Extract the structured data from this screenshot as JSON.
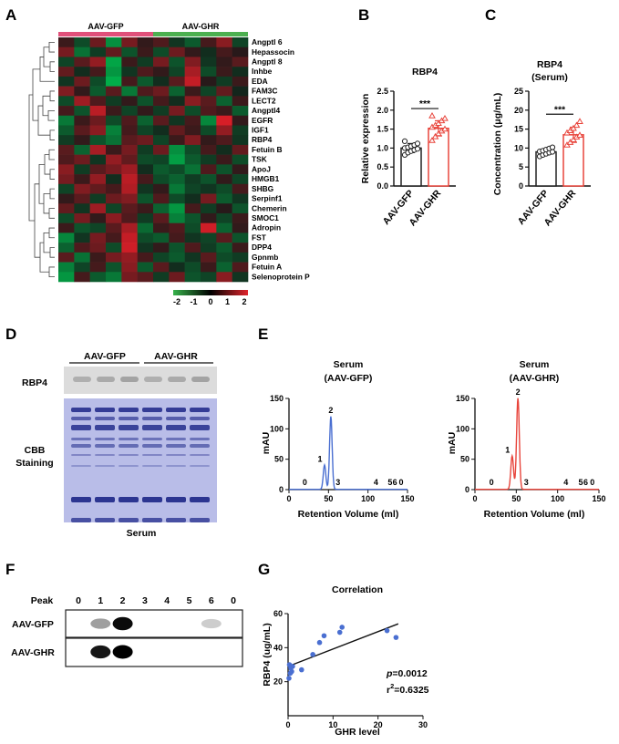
{
  "panels": {
    "A": "A",
    "B": "B",
    "C": "C",
    "D": "D",
    "E": "E",
    "F": "F",
    "G": "G"
  },
  "heatmap": {
    "groups": [
      "AAV-GFP",
      "AAV-GHR"
    ],
    "group_colors": [
      "#e0507a",
      "#4cb050"
    ],
    "genes": [
      "Angptl 6",
      "Hepassocin",
      "Angptl 8",
      "Inhbe",
      "EDA",
      "FAM3C",
      "LECT2",
      "Angptl4",
      "EGFR",
      "IGF1",
      "RBP4",
      "Fetuin B",
      "TSK",
      "ApoJ",
      "HMGB1",
      "SHBG",
      "Serpinf1",
      "Chemerin",
      "SMOC1",
      "Adropin",
      "FST",
      "DPP4",
      "Gpnmb",
      "Fetuin A",
      "Selenoprotein P"
    ],
    "scale_ticks": [
      "-2",
      "-1",
      "0",
      "1",
      "2"
    ],
    "values": [
      [
        0.3,
        -0.6,
        0.8,
        -1.5,
        0.9,
        0.2,
        0.5,
        -0.3,
        -0.8,
        0.4,
        1.1,
        -0.5
      ],
      [
        0.9,
        -1.1,
        -0.4,
        0.7,
        -0.7,
        0.3,
        -0.6,
        0.8,
        0.2,
        -0.2,
        0.4,
        0.1
      ],
      [
        -0.5,
        0.6,
        1.2,
        -1.8,
        0.3,
        -0.4,
        0.9,
        -0.7,
        1.0,
        -0.3,
        0.2,
        0.6
      ],
      [
        0.7,
        -0.2,
        0.4,
        -1.6,
        -0.3,
        0.5,
        0.2,
        -0.5,
        1.4,
        -0.6,
        0.3,
        -0.2
      ],
      [
        -0.3,
        0.8,
        -0.6,
        -1.9,
        0.4,
        -0.8,
        -0.2,
        0.6,
        1.7,
        0.1,
        -0.4,
        0.3
      ],
      [
        1.0,
        0.2,
        -0.8,
        0.6,
        -1.2,
        0.5,
        0.8,
        -0.9,
        0.3,
        -0.5,
        0.7,
        -0.1
      ],
      [
        -0.6,
        1.3,
        0.5,
        -0.4,
        0.2,
        -0.7,
        0.4,
        -0.2,
        1.1,
        0.6,
        -0.9,
        0.3
      ],
      [
        0.4,
        -0.7,
        1.6,
        0.3,
        -0.5,
        0.2,
        -0.4,
        0.9,
        -0.6,
        0.5,
        0.3,
        -0.8
      ],
      [
        -1.2,
        0.3,
        0.8,
        -0.6,
        0.5,
        -0.9,
        0.6,
        -0.3,
        0.4,
        -1.4,
        1.9,
        0.2
      ],
      [
        -0.8,
        0.6,
        1.1,
        -1.3,
        0.4,
        -0.5,
        -0.2,
        0.7,
        0.3,
        -0.6,
        1.2,
        -0.4
      ],
      [
        -0.4,
        0.2,
        -0.7,
        -1.1,
        0.6,
        0.8,
        -0.5,
        0.3,
        1.0,
        0.2,
        0.5,
        -0.3
      ],
      [
        0.6,
        -0.9,
        1.4,
        0.3,
        0.9,
        -0.4,
        0.8,
        -1.5,
        -0.6,
        0.4,
        -0.2,
        0.7
      ],
      [
        0.5,
        0.8,
        -0.3,
        1.2,
        0.7,
        -0.6,
        -0.5,
        -1.7,
        -0.8,
        -0.4,
        0.3,
        -0.6
      ],
      [
        1.1,
        -0.4,
        0.6,
        0.9,
        1.3,
        -0.2,
        -0.8,
        -0.6,
        -1.1,
        0.5,
        -0.7,
        0.2
      ],
      [
        0.9,
        0.3,
        1.2,
        -0.2,
        1.6,
        0.4,
        -0.6,
        -0.9,
        -0.4,
        -0.7,
        0.2,
        -0.5
      ],
      [
        -0.5,
        1.0,
        0.7,
        0.4,
        1.5,
        -0.3,
        0.2,
        -1.2,
        -0.5,
        -0.3,
        -0.6,
        0.4
      ],
      [
        0.2,
        0.6,
        -0.4,
        0.8,
        1.0,
        -0.7,
        0.5,
        -0.6,
        -0.2,
        0.9,
        -0.8,
        -0.3
      ],
      [
        0.7,
        -0.3,
        1.3,
        -0.5,
        0.6,
        0.3,
        -0.9,
        -1.6,
        0.4,
        -0.4,
        0.1,
        -0.7
      ],
      [
        -0.6,
        0.9,
        0.2,
        1.1,
        0.5,
        -0.4,
        0.6,
        -1.3,
        -0.7,
        0.2,
        -0.5,
        0.3
      ],
      [
        0.3,
        -0.7,
        -0.5,
        0.6,
        1.4,
        -1.0,
        0.3,
        0.5,
        -0.6,
        1.8,
        -0.9,
        0.2
      ],
      [
        -1.4,
        -0.3,
        0.9,
        0.4,
        1.7,
        -0.6,
        -0.8,
        0.4,
        -0.3,
        -0.5,
        0.6,
        -0.7
      ],
      [
        -0.9,
        0.5,
        0.8,
        -0.6,
        1.8,
        -0.3,
        0.2,
        -0.7,
        0.5,
        -0.4,
        -0.8,
        0.3
      ],
      [
        0.6,
        -1.1,
        0.3,
        0.9,
        1.2,
        0.4,
        -0.5,
        -0.8,
        -0.3,
        0.6,
        -0.6,
        -0.4
      ],
      [
        -1.3,
        -0.5,
        0.4,
        -0.7,
        1.1,
        -0.8,
        0.6,
        -0.2,
        -0.6,
        0.3,
        -0.9,
        0.5
      ],
      [
        -1.6,
        0.4,
        -0.8,
        -1.2,
        0.9,
        0.6,
        -0.4,
        0.8,
        -0.7,
        -0.5,
        1.1,
        -0.3
      ]
    ]
  },
  "chart_data": [
    {
      "panel": "B",
      "type": "bar",
      "title": "RBP4",
      "ylabel": "Relative expression",
      "categories": [
        "AAV-GFP",
        "AAV-GHR"
      ],
      "values": [
        1.0,
        1.52
      ],
      "errors": [
        0.12,
        0.2
      ],
      "ylim": [
        0,
        2.5
      ],
      "yticks": [
        "0.0",
        "0.5",
        "1.0",
        "1.5",
        "2.0",
        "2.5"
      ],
      "significance": "***",
      "colors": [
        "#222222",
        "#e8453c"
      ],
      "points": [
        [
          0.82,
          0.88,
          0.92,
          0.95,
          0.98,
          1.0,
          1.02,
          1.05,
          1.08,
          1.12,
          1.18
        ],
        [
          1.2,
          1.3,
          1.38,
          1.45,
          1.5,
          1.55,
          1.6,
          1.65,
          1.72,
          1.78,
          1.85
        ]
      ]
    },
    {
      "panel": "C",
      "type": "bar",
      "title": "RBP4\n(Serum)",
      "ylabel": "Concentration (μg/mL)",
      "categories": [
        "AAV-GFP",
        "AAV-GHR"
      ],
      "values": [
        9.0,
        13.5
      ],
      "errors": [
        0.8,
        2.0
      ],
      "ylim": [
        0,
        25
      ],
      "yticks": [
        "0",
        "5",
        "10",
        "15",
        "20",
        "25"
      ],
      "significance": "***",
      "colors": [
        "#222222",
        "#e8453c"
      ],
      "points": [
        [
          7.8,
          8.2,
          8.5,
          8.8,
          9.0,
          9.1,
          9.3,
          9.6,
          9.9,
          10.2
        ],
        [
          10.8,
          11.5,
          12.2,
          12.9,
          13.4,
          14.0,
          14.6,
          15.2,
          16.0,
          17.0
        ]
      ]
    },
    {
      "panel": "E",
      "type": "line",
      "title": "Serum\n(AAV-GFP)",
      "xlabel": "Retention Volume (ml)",
      "ylabel": "mAU",
      "xlim": [
        0,
        150
      ],
      "ylim": [
        0,
        150
      ],
      "xticks": [
        "0",
        "50",
        "100",
        "150"
      ],
      "yticks": [
        "0",
        "50",
        "100",
        "150"
      ],
      "color": "#4a6fd1",
      "peaks": [
        {
          "label": "0",
          "x": 20,
          "h": 0
        },
        {
          "label": "1",
          "x": 45,
          "h": 40
        },
        {
          "label": "2",
          "x": 53,
          "h": 120
        },
        {
          "label": "3",
          "x": 62,
          "h": 0
        },
        {
          "label": "4",
          "x": 110,
          "h": 0
        },
        {
          "label": "5",
          "x": 128,
          "h": 0
        },
        {
          "label": "6",
          "x": 134,
          "h": 0
        },
        {
          "label": "0",
          "x": 142,
          "h": 0
        }
      ]
    },
    {
      "panel": "E",
      "type": "line",
      "title": "Serum\n(AAV-GHR)",
      "xlabel": "Retention Volume (ml)",
      "ylabel": "mAU",
      "xlim": [
        0,
        150
      ],
      "ylim": [
        0,
        150
      ],
      "xticks": [
        "0",
        "50",
        "100",
        "150"
      ],
      "yticks": [
        "0",
        "50",
        "100",
        "150"
      ],
      "color": "#e8453c",
      "peaks": [
        {
          "label": "0",
          "x": 20,
          "h": 0
        },
        {
          "label": "1",
          "x": 45,
          "h": 55
        },
        {
          "label": "2",
          "x": 52,
          "h": 150
        },
        {
          "label": "3",
          "x": 62,
          "h": 0
        },
        {
          "label": "4",
          "x": 110,
          "h": 0
        },
        {
          "label": "5",
          "x": 128,
          "h": 0
        },
        {
          "label": "6",
          "x": 134,
          "h": 0
        },
        {
          "label": "0",
          "x": 142,
          "h": 0
        }
      ]
    },
    {
      "panel": "G",
      "type": "scatter",
      "title": "Correlation",
      "xlabel": "GHR level",
      "ylabel": "RBP4 (ug/mL)",
      "xlim": [
        0,
        30
      ],
      "ylim": [
        0,
        60
      ],
      "xticks": [
        "0",
        "10",
        "20",
        "30"
      ],
      "yticks": [
        "20",
        "40",
        "60"
      ],
      "x": [
        0.2,
        0.3,
        0.5,
        0.6,
        0.8,
        1.0,
        3.0,
        5.5,
        7.0,
        8.0,
        11.5,
        12.0,
        22.0,
        24.0
      ],
      "y": [
        22,
        30,
        25,
        28,
        26,
        29,
        27,
        36,
        43,
        47,
        49,
        52,
        50,
        46
      ],
      "fit": {
        "x": [
          0,
          24.5
        ],
        "y": [
          29,
          54
        ]
      },
      "p_label": "p",
      "p_value": "=0.0012",
      "r2_label": "r",
      "r2_exp": "2",
      "r2_value": "=0.6325",
      "color": "#4a6fd1"
    }
  ],
  "blot_D": {
    "groups": [
      "AAV-GFP",
      "AAV-GHR"
    ],
    "row_label": "RBP4",
    "stain_label_1": "CBB",
    "stain_label_2": "Staining",
    "footer": "Serum"
  },
  "blot_F": {
    "header": "Peak",
    "peaks": [
      "0",
      "1",
      "2",
      "3",
      "4",
      "5",
      "6",
      "0"
    ],
    "rows": [
      "AAV-GFP",
      "AAV-GHR"
    ],
    "intensities": [
      [
        0,
        0.25,
        0.9,
        0,
        0,
        0,
        0.05,
        0
      ],
      [
        0,
        0.85,
        1.0,
        0,
        0,
        0,
        0,
        0
      ]
    ]
  }
}
